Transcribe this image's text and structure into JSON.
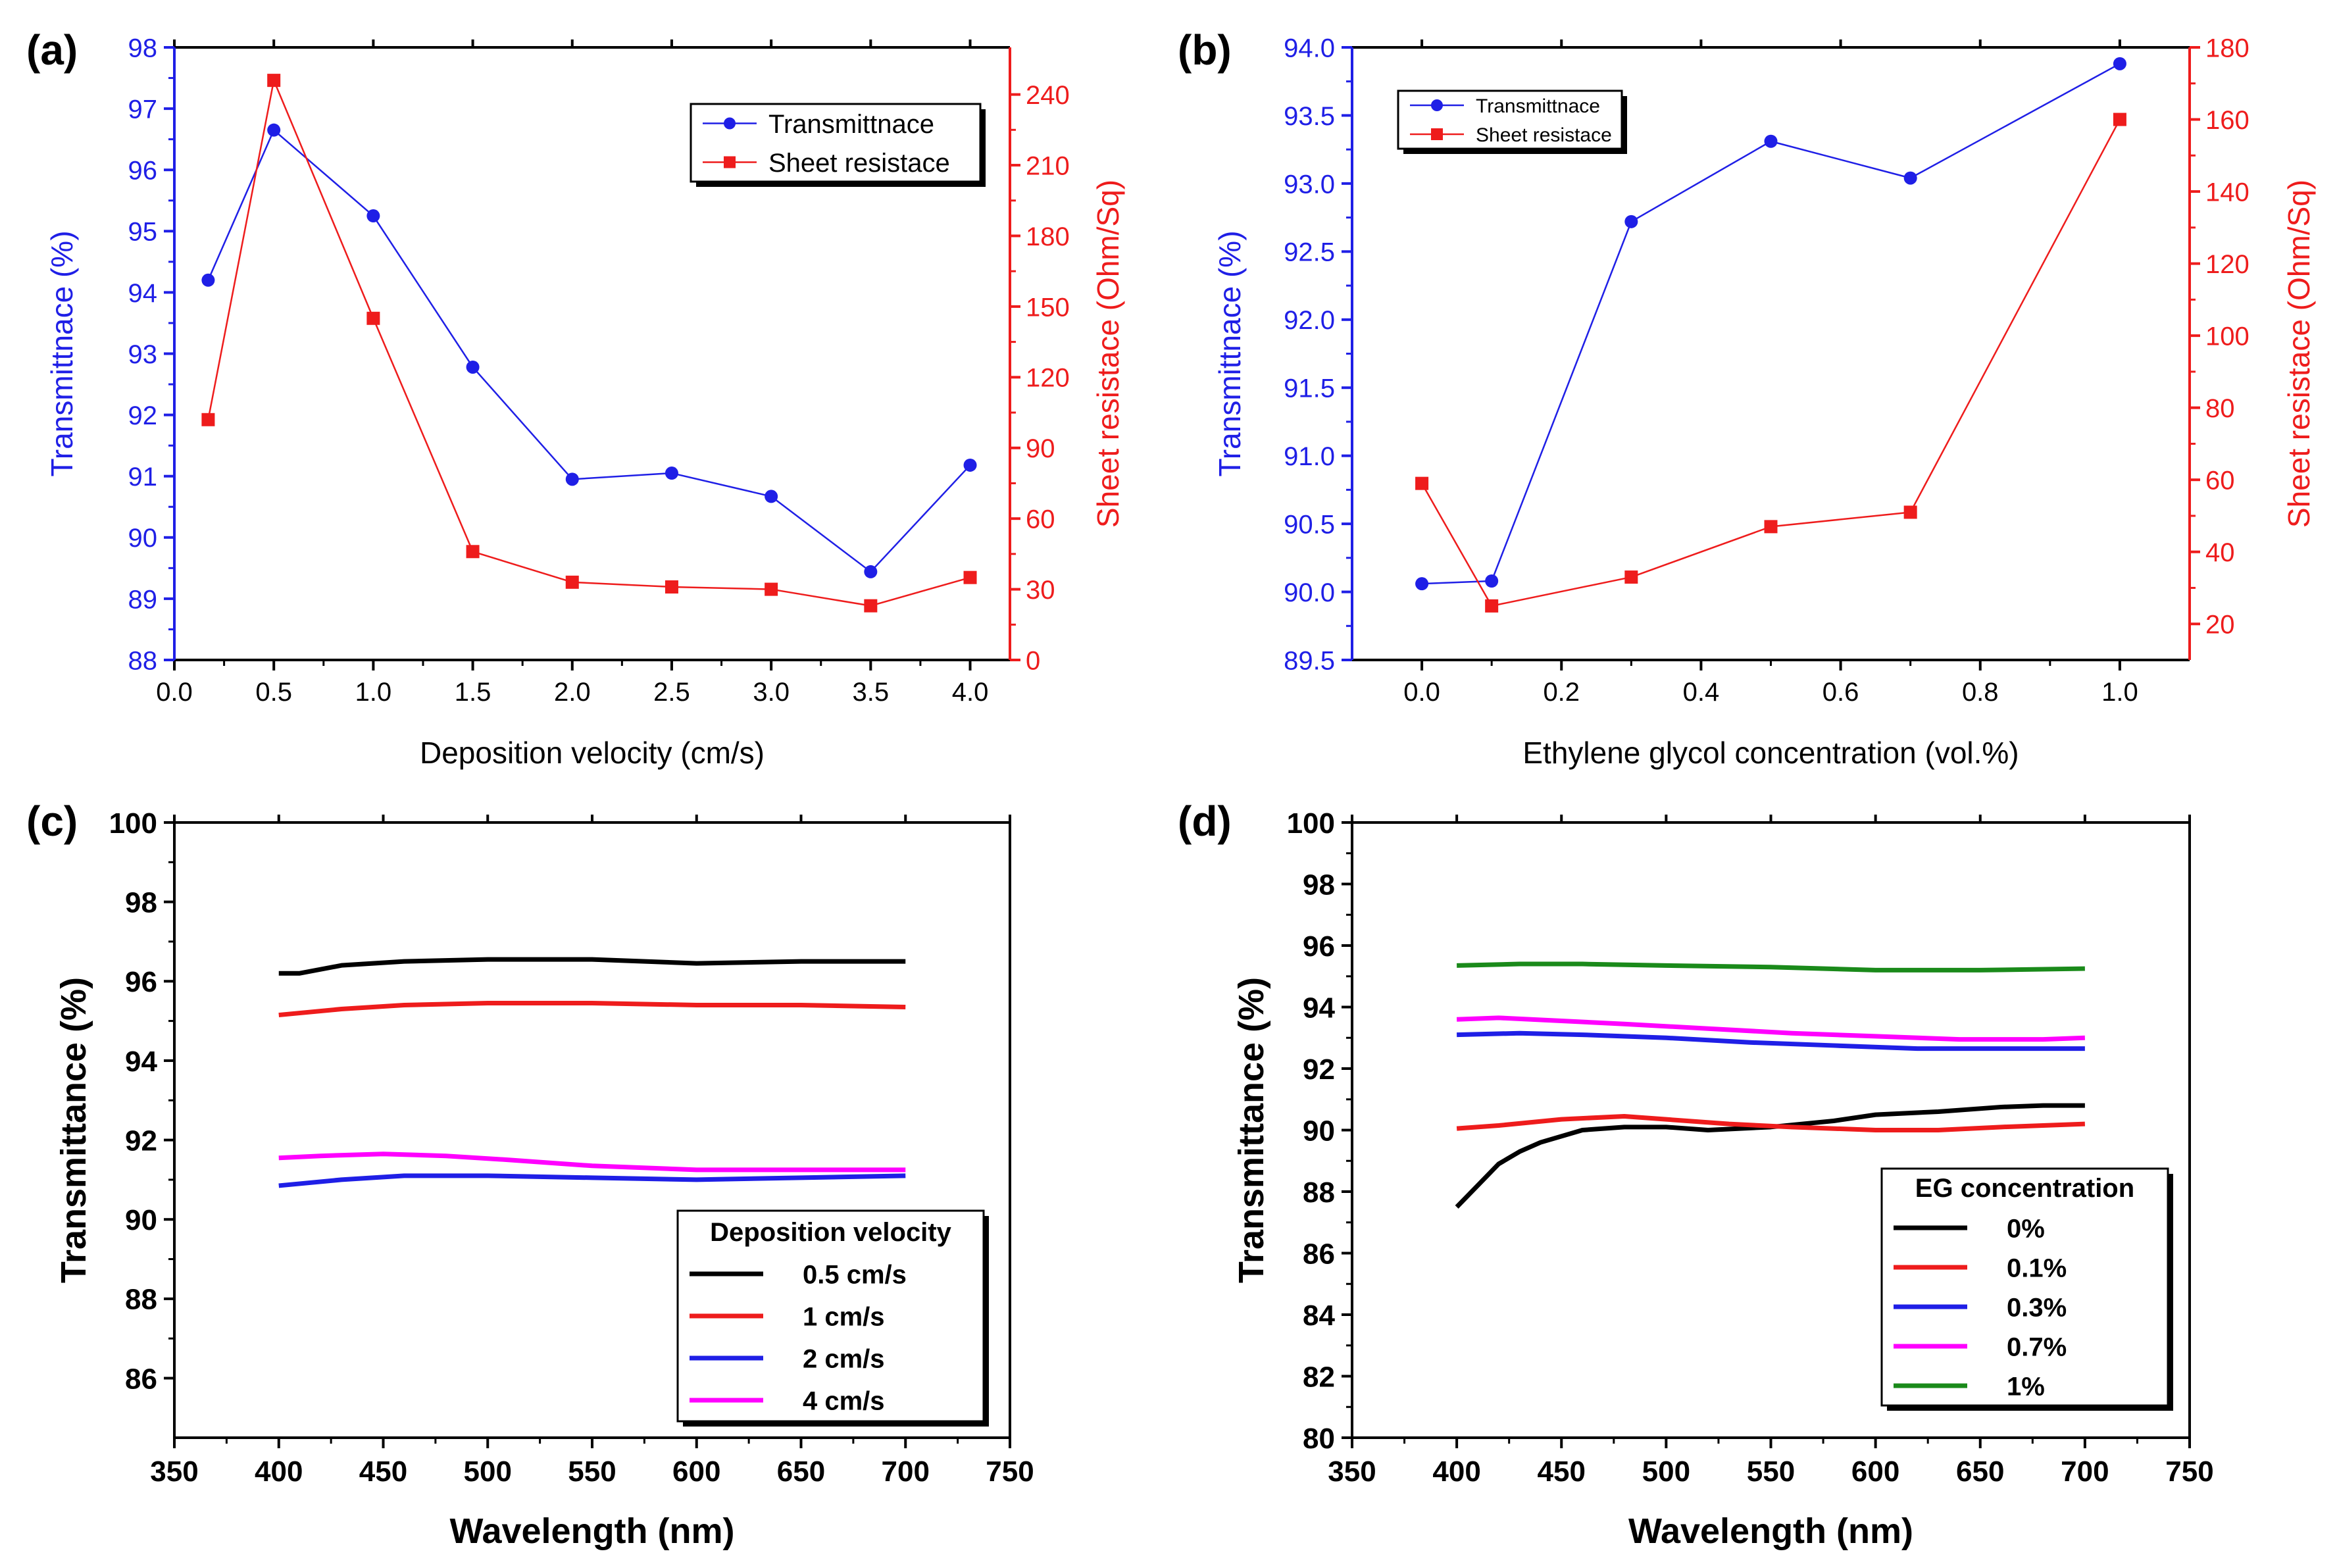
{
  "colors": {
    "blue": "#1f1fe6",
    "red": "#ee1c1c",
    "black": "#000000",
    "magenta": "#ff00ff",
    "green": "#1a8a1a"
  },
  "chart_data": [
    {
      "panel": "(a)",
      "type": "line",
      "xlabel": "Deposition velocity (cm/s)",
      "ylabel": "Transmittnace (%)",
      "ylabel_right": "Sheet resistace (Ohm/Sq)",
      "xlim": [
        0.0,
        4.2
      ],
      "ylim": [
        88,
        98
      ],
      "ylim_right": [
        0,
        260
      ],
      "xticks": [
        0.0,
        0.5,
        1.0,
        1.5,
        2.0,
        2.5,
        3.0,
        3.5,
        4.0
      ],
      "xtick_labels": [
        "0.0",
        "0.5",
        "1.0",
        "1.5",
        "2.0",
        "2.5",
        "3.0",
        "3.5",
        "4.0"
      ],
      "yticks": [
        88,
        89,
        90,
        91,
        92,
        93,
        94,
        95,
        96,
        97,
        98
      ],
      "ytick_labels": [
        "88",
        "89",
        "90",
        "91",
        "92",
        "93",
        "94",
        "95",
        "96",
        "97",
        "98"
      ],
      "yticks_right": [
        0,
        30,
        60,
        90,
        120,
        150,
        180,
        210,
        240
      ],
      "ytick_labels_right": [
        "0",
        "30",
        "60",
        "90",
        "120",
        "150",
        "180",
        "210",
        "240"
      ],
      "legend": [
        "Transmittnace",
        "Sheet resistace"
      ],
      "series": [
        {
          "name": "Transmittnace",
          "axis": "left",
          "color": "#1f1fe6",
          "marker": "circle",
          "x": [
            0.17,
            0.5,
            1.0,
            1.5,
            2.0,
            2.5,
            3.0,
            3.5,
            4.0
          ],
          "values": [
            94.2,
            96.65,
            95.25,
            92.78,
            90.95,
            91.05,
            90.67,
            89.44,
            91.18
          ]
        },
        {
          "name": "Sheet resistace",
          "axis": "right",
          "color": "#ee1c1c",
          "marker": "square",
          "x": [
            0.17,
            0.5,
            1.0,
            1.5,
            2.0,
            2.5,
            3.0,
            3.5,
            4.0
          ],
          "values": [
            102,
            246,
            145,
            46,
            33,
            31,
            30,
            23,
            35
          ]
        }
      ]
    },
    {
      "panel": "(b)",
      "type": "line",
      "xlabel": "Ethylene glycol concentration (vol.%)",
      "ylabel": "Transmittnace (%)",
      "ylabel_right": "Sheet resistace (Ohm/Sq)",
      "xlim": [
        -0.1,
        1.1
      ],
      "ylim": [
        89.5,
        94.0
      ],
      "ylim_right": [
        10,
        180
      ],
      "xticks": [
        0.0,
        0.2,
        0.4,
        0.6,
        0.8,
        1.0
      ],
      "xtick_labels": [
        "0.0",
        "0.2",
        "0.4",
        "0.6",
        "0.8",
        "1.0"
      ],
      "yticks": [
        89.5,
        90.0,
        90.5,
        91.0,
        91.5,
        92.0,
        92.5,
        93.0,
        93.5,
        94.0
      ],
      "ytick_labels": [
        "89.5",
        "90.0",
        "90.5",
        "91.0",
        "91.5",
        "92.0",
        "92.5",
        "93.0",
        "93.5",
        "94.0"
      ],
      "yticks_right": [
        20,
        40,
        60,
        80,
        100,
        120,
        140,
        160,
        180
      ],
      "ytick_labels_right": [
        "20",
        "40",
        "60",
        "80",
        "100",
        "120",
        "140",
        "160",
        "180"
      ],
      "legend": [
        "Transmittnace",
        "Sheet resistace"
      ],
      "series": [
        {
          "name": "Transmittnace",
          "axis": "left",
          "color": "#1f1fe6",
          "marker": "circle",
          "x": [
            0.0,
            0.1,
            0.3,
            0.5,
            0.7,
            1.0
          ],
          "values": [
            90.06,
            90.08,
            92.72,
            93.31,
            93.04,
            93.88
          ]
        },
        {
          "name": "Sheet resistace",
          "axis": "right",
          "color": "#ee1c1c",
          "marker": "square",
          "x": [
            0.0,
            0.1,
            0.3,
            0.5,
            0.7,
            1.0
          ],
          "values": [
            59,
            25,
            33,
            47,
            51,
            160
          ]
        }
      ]
    },
    {
      "panel": "(c)",
      "type": "line",
      "xlabel": "Wavelength (nm)",
      "ylabel": "Transmittance (%)",
      "xlim": [
        350,
        750
      ],
      "ylim": [
        84.5,
        100
      ],
      "xticks": [
        350,
        400,
        450,
        500,
        550,
        600,
        650,
        700,
        750
      ],
      "xtick_labels": [
        "350",
        "400",
        "450",
        "500",
        "550",
        "600",
        "650",
        "700",
        "750"
      ],
      "yticks": [
        86,
        88,
        90,
        92,
        94,
        96,
        98,
        100
      ],
      "ytick_labels": [
        "86",
        "88",
        "90",
        "92",
        "94",
        "96",
        "98",
        "100"
      ],
      "legend_title": "Deposition velocity",
      "legend": [
        "0.5 cm/s",
        "1 cm/s",
        "2 cm/s",
        "4 cm/s"
      ],
      "series": [
        {
          "name": "0.5 cm/s",
          "color": "#000000",
          "x": [
            400,
            410,
            430,
            460,
            500,
            550,
            600,
            650,
            700
          ],
          "values": [
            96.2,
            96.2,
            96.4,
            96.5,
            96.55,
            96.55,
            96.45,
            96.5,
            96.5
          ]
        },
        {
          "name": "1 cm/s",
          "color": "#ee1c1c",
          "x": [
            400,
            410,
            430,
            460,
            500,
            550,
            600,
            650,
            700
          ],
          "values": [
            95.15,
            95.2,
            95.3,
            95.4,
            95.45,
            95.45,
            95.4,
            95.4,
            95.35
          ]
        },
        {
          "name": "2 cm/s",
          "color": "#1f1fe6",
          "x": [
            400,
            410,
            430,
            460,
            500,
            550,
            600,
            650,
            700
          ],
          "values": [
            90.85,
            90.9,
            91.0,
            91.1,
            91.1,
            91.05,
            91.0,
            91.05,
            91.1
          ]
        },
        {
          "name": "4 cm/s",
          "color": "#ff00ff",
          "x": [
            400,
            420,
            450,
            480,
            510,
            550,
            600,
            650,
            700
          ],
          "values": [
            91.55,
            91.6,
            91.65,
            91.6,
            91.5,
            91.35,
            91.25,
            91.25,
            91.25
          ]
        }
      ]
    },
    {
      "panel": "(d)",
      "type": "line",
      "xlabel": "Wavelength (nm)",
      "ylabel": "Transmittance (%)",
      "xlim": [
        350,
        750
      ],
      "ylim": [
        80,
        100
      ],
      "xticks": [
        350,
        400,
        450,
        500,
        550,
        600,
        650,
        700,
        750
      ],
      "xtick_labels": [
        "350",
        "400",
        "450",
        "500",
        "550",
        "600",
        "650",
        "700",
        "750"
      ],
      "yticks": [
        80,
        82,
        84,
        86,
        88,
        90,
        92,
        94,
        96,
        98,
        100
      ],
      "ytick_labels": [
        "80",
        "82",
        "84",
        "86",
        "88",
        "90",
        "92",
        "94",
        "96",
        "98",
        "100"
      ],
      "legend_title": "EG concentration",
      "legend": [
        "0%",
        "0.1%",
        "0.3%",
        "0.7%",
        "1%"
      ],
      "series": [
        {
          "name": "0%",
          "color": "#000000",
          "x": [
            400,
            410,
            420,
            430,
            440,
            460,
            480,
            500,
            520,
            550,
            580,
            600,
            630,
            660,
            680,
            700
          ],
          "values": [
            87.5,
            88.2,
            88.9,
            89.3,
            89.6,
            90.0,
            90.1,
            90.1,
            90.0,
            90.1,
            90.3,
            90.5,
            90.6,
            90.75,
            90.8,
            90.8
          ]
        },
        {
          "name": "0.1%",
          "color": "#ee1c1c",
          "x": [
            400,
            420,
            450,
            480,
            500,
            530,
            560,
            600,
            630,
            660,
            700
          ],
          "values": [
            90.05,
            90.15,
            90.35,
            90.45,
            90.35,
            90.2,
            90.1,
            90.0,
            90.0,
            90.1,
            90.2
          ]
        },
        {
          "name": "0.3%",
          "color": "#1f1fe6",
          "x": [
            400,
            430,
            460,
            500,
            540,
            580,
            620,
            660,
            700
          ],
          "values": [
            93.1,
            93.15,
            93.1,
            93.0,
            92.85,
            92.75,
            92.65,
            92.65,
            92.65
          ]
        },
        {
          "name": "0.7%",
          "color": "#ff00ff",
          "x": [
            400,
            420,
            450,
            480,
            520,
            560,
            600,
            640,
            680,
            700
          ],
          "values": [
            93.6,
            93.65,
            93.55,
            93.45,
            93.3,
            93.15,
            93.05,
            92.95,
            92.95,
            93.0
          ]
        },
        {
          "name": "1%",
          "color": "#1a8a1a",
          "x": [
            400,
            430,
            460,
            500,
            550,
            600,
            650,
            700
          ],
          "values": [
            95.35,
            95.4,
            95.4,
            95.35,
            95.3,
            95.2,
            95.2,
            95.25
          ]
        }
      ]
    }
  ]
}
